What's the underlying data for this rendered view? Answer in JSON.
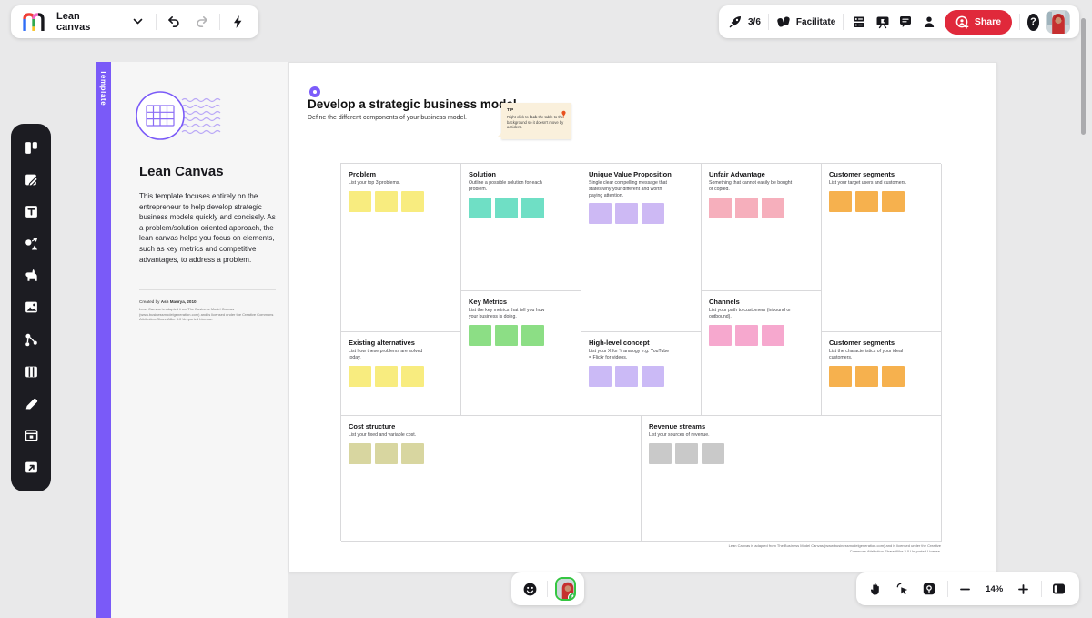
{
  "topbar": {
    "left": {
      "board_name": "Lean canvas"
    },
    "right": {
      "outline_progress": "3/6",
      "facilitate_label": "Facilitate",
      "share_label": "Share"
    }
  },
  "sidebar": {
    "items": [
      "layouts",
      "sticky-note",
      "text",
      "shapes",
      "llama",
      "image",
      "connector",
      "table",
      "draw",
      "frames",
      "export"
    ]
  },
  "template_panel": {
    "tag": "Template",
    "title": "Lean Canvas",
    "description": "This template focuses entirely on the entrepreneur to help develop strategic business models quickly and concisely. As a problem/solution oriented approach, the lean canvas helps you focus on elements, such as key metrics and competitive advantages, to address a problem.",
    "created_by_prefix": "Created by ",
    "created_by_name": "Ash Maurya, 2010",
    "license": "Lean Canvas is adapted from The Business Model Canvas (www.businessmodelgeneration.com) and is licensed under the Creative Commons Attribution-Share Alike 3.0 Un-ported License."
  },
  "canvas": {
    "heading": "Develop a strategic business model",
    "subheading": "Define the different components of your business model.",
    "tip": {
      "label": "TIP",
      "text_pre": "Right click to ",
      "text_bold": "lock",
      "text_post": " the table to the background so it doesn't move by accident."
    },
    "cells": [
      {
        "title": "Problem",
        "desc": "List your top 3 problems.",
        "sticky_color": "#F8EC7F",
        "sticky_count": 3
      },
      {
        "title": "Solution",
        "desc": "Outline a possible solution for each problem.",
        "sticky_color": "#6FDFC5",
        "sticky_count": 3
      },
      {
        "title": "Unique Value Proposition",
        "desc": "Single clear compelling message that states why your different and worth paying attention.",
        "sticky_color": "#CDB9F4",
        "sticky_count": 3
      },
      {
        "title": "Unfair Advantage",
        "desc": "Something that cannot easily be bought or copied.",
        "sticky_color": "#F6AFBC",
        "sticky_count": 3
      },
      {
        "title": "Customer segments",
        "desc": "List your target users and customers.",
        "sticky_color": "#F6B14E",
        "sticky_count": 3
      },
      {
        "title": "Existing alternatives",
        "desc": "List how these problems are solved today.",
        "sticky_color": "#F8EC7F",
        "sticky_count": 3
      },
      {
        "title": "Key Metrics",
        "desc": "List the key metrics that tell you how your business is doing.",
        "sticky_color": "#8CDE85",
        "sticky_count": 3
      },
      {
        "title": "High-level concept",
        "desc": "List your X for Y analogy e.g. YouTube = Flickr for videos.",
        "sticky_color": "#CBBAF6",
        "sticky_count": 3
      },
      {
        "title": "Channels",
        "desc": "List your path to customers (inbound or outbound).",
        "sticky_color": "#F6A8CE",
        "sticky_count": 3
      },
      {
        "title": "Customer segments",
        "desc": "List the characteristics of your ideal customers.",
        "sticky_color": "#F6B14E",
        "sticky_count": 3
      },
      {
        "title": "Cost structure",
        "desc": "List your fixed and variable cost.",
        "sticky_color": "#D8D6A0",
        "sticky_count": 3
      },
      {
        "title": "Revenue streams",
        "desc": "List your sources of revenue.",
        "sticky_color": "#C9C9C9",
        "sticky_count": 3
      }
    ],
    "license": "Lean Canvas is adapted from The Business Model Canvas (www.businessmodelgeneration.com) and is licensed under the Creative Commons Attribution-Share Alike 3.0 Un-ported License."
  },
  "bottom_bar": {
    "zoom_level": "14%"
  },
  "colors": {
    "accent_purple": "#7A5AF8",
    "share_red": "#E0293B",
    "toolbar_dark": "#1C1C22",
    "tip_bg": "#FAF0DC",
    "facilitator_green": "#35C642",
    "background": "#E9E9EA"
  }
}
